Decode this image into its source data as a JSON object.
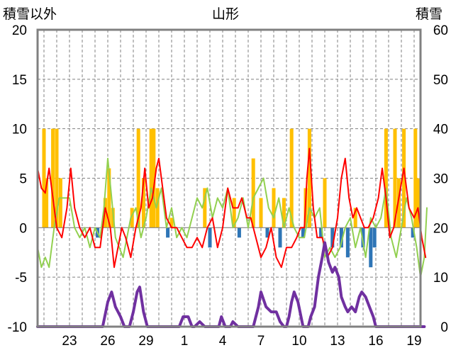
{
  "chart_data": {
    "type": "line",
    "title": "山形",
    "left_axis_label": "積雪以外",
    "right_axis_label": "積雪",
    "ylim_left": [
      -10,
      20
    ],
    "ylim_right": [
      0,
      60
    ],
    "yticks_left": [
      "20",
      "15",
      "10",
      "5",
      "0",
      "-5",
      "-10"
    ],
    "yticks_right": [
      "60",
      "50",
      "40",
      "30",
      "20",
      "10",
      "0"
    ],
    "x_range": [
      20.5,
      50.5
    ],
    "x_tick_labels": [
      "23",
      "26",
      "29",
      "1",
      "4",
      "7",
      "10",
      "13",
      "16",
      "19"
    ],
    "x_tick_positions": [
      23,
      26,
      29,
      32,
      35,
      38,
      41,
      44,
      47,
      50
    ],
    "grid": true,
    "colors": {
      "temp_anomaly": "#ff0000",
      "sunshine_anomaly": "#92d050",
      "precip_pos": "#ffc000",
      "precip_neg": "#2e75b6",
      "snow_depth": "#7030a0",
      "axis": "#808080",
      "grid": "#808080"
    },
    "series": [
      {
        "key": "temp_anomaly",
        "axis": "left",
        "points": [
          [
            20.5,
            6
          ],
          [
            20.8,
            4
          ],
          [
            21.1,
            3.5
          ],
          [
            21.4,
            6
          ],
          [
            21.7,
            3
          ],
          [
            22,
            0
          ],
          [
            22.4,
            -1
          ],
          [
            22.8,
            2
          ],
          [
            23.1,
            6
          ],
          [
            23.4,
            2
          ],
          [
            23.8,
            0
          ],
          [
            24.2,
            -1
          ],
          [
            24.6,
            0
          ],
          [
            25,
            -2
          ],
          [
            25.4,
            -2
          ],
          [
            25.8,
            2
          ],
          [
            26.2,
            0
          ],
          [
            26.5,
            -4
          ],
          [
            26.8,
            -2
          ],
          [
            27.1,
            0
          ],
          [
            27.4,
            -1
          ],
          [
            27.8,
            -3
          ],
          [
            28.2,
            0
          ],
          [
            28.6,
            2
          ],
          [
            28.9,
            6
          ],
          [
            29.2,
            2
          ],
          [
            29.5,
            3
          ],
          [
            29.8,
            6
          ],
          [
            30,
            7
          ],
          [
            30.3,
            4
          ],
          [
            30.6,
            1
          ],
          [
            31,
            0
          ],
          [
            31.4,
            0
          ],
          [
            31.8,
            -1
          ],
          [
            32.2,
            -2
          ],
          [
            32.6,
            -2
          ],
          [
            33,
            -1
          ],
          [
            33.4,
            -2
          ],
          [
            33.8,
            0
          ],
          [
            34.2,
            1
          ],
          [
            34.6,
            -2
          ],
          [
            35,
            0
          ],
          [
            35.4,
            4
          ],
          [
            35.8,
            2
          ],
          [
            36.2,
            2
          ],
          [
            36.5,
            3
          ],
          [
            36.9,
            1
          ],
          [
            37.2,
            1
          ],
          [
            37.6,
            -1
          ],
          [
            38,
            -3
          ],
          [
            38.4,
            -2
          ],
          [
            38.8,
            0
          ],
          [
            39.2,
            -3
          ],
          [
            39.6,
            -4
          ],
          [
            40,
            -2
          ],
          [
            40.4,
            -2
          ],
          [
            40.8,
            -1
          ],
          [
            41.1,
            0
          ],
          [
            41.4,
            0
          ],
          [
            41.6,
            5
          ],
          [
            41.8,
            8
          ],
          [
            42.1,
            2
          ],
          [
            42.4,
            -1
          ],
          [
            42.8,
            -1
          ],
          [
            43.2,
            -3
          ],
          [
            43.6,
            -2
          ],
          [
            44,
            1
          ],
          [
            44.3,
            5
          ],
          [
            44.6,
            7
          ],
          [
            44.9,
            3
          ],
          [
            45.2,
            1
          ],
          [
            45.5,
            2
          ],
          [
            45.8,
            1
          ],
          [
            46.1,
            0
          ],
          [
            46.4,
            0
          ],
          [
            46.8,
            1
          ],
          [
            47.2,
            3
          ],
          [
            47.5,
            6
          ],
          [
            47.8,
            3
          ],
          [
            48.1,
            -1
          ],
          [
            48.4,
            0
          ],
          [
            48.8,
            3
          ],
          [
            49.2,
            6
          ],
          [
            49.6,
            2
          ],
          [
            50,
            1
          ],
          [
            50.3,
            2
          ],
          [
            50.6,
            -1
          ],
          [
            50.9,
            -3
          ]
        ]
      },
      {
        "key": "sunshine_anomaly",
        "axis": "left",
        "points": [
          [
            20.5,
            -2
          ],
          [
            20.8,
            -4
          ],
          [
            21.1,
            -3
          ],
          [
            21.4,
            -4
          ],
          [
            21.8,
            0
          ],
          [
            22.2,
            3
          ],
          [
            22.6,
            3
          ],
          [
            23,
            3
          ],
          [
            23.4,
            0
          ],
          [
            23.8,
            -1
          ],
          [
            24.2,
            0
          ],
          [
            24.6,
            -2
          ],
          [
            25,
            0
          ],
          [
            25.4,
            -1
          ],
          [
            25.7,
            2
          ],
          [
            26,
            7
          ],
          [
            26.3,
            3
          ],
          [
            26.6,
            -1
          ],
          [
            26.9,
            -2
          ],
          [
            27.2,
            -3
          ],
          [
            27.5,
            -1
          ],
          [
            27.8,
            1
          ],
          [
            28.2,
            2
          ],
          [
            28.6,
            -1
          ],
          [
            29,
            1
          ],
          [
            29.4,
            4
          ],
          [
            29.8,
            2
          ],
          [
            30.2,
            4
          ],
          [
            30.6,
            0
          ],
          [
            31,
            2
          ],
          [
            31.4,
            -1
          ],
          [
            31.8,
            0
          ],
          [
            32.2,
            -1
          ],
          [
            32.6,
            1
          ],
          [
            33,
            3
          ],
          [
            33.4,
            2
          ],
          [
            33.8,
            4
          ],
          [
            34.2,
            1
          ],
          [
            34.6,
            3
          ],
          [
            35,
            2
          ],
          [
            35.4,
            4
          ],
          [
            35.8,
            0
          ],
          [
            36.2,
            1
          ],
          [
            36.6,
            3
          ],
          [
            37,
            0
          ],
          [
            37.4,
            3
          ],
          [
            37.8,
            4
          ],
          [
            38.2,
            5
          ],
          [
            38.6,
            2
          ],
          [
            39,
            1
          ],
          [
            39.4,
            3
          ],
          [
            39.8,
            0
          ],
          [
            40.2,
            2
          ],
          [
            40.6,
            0
          ],
          [
            41,
            -1
          ],
          [
            41.4,
            -1
          ],
          [
            41.8,
            2
          ],
          [
            42.2,
            1
          ],
          [
            42.6,
            2
          ],
          [
            43,
            -3
          ],
          [
            43.4,
            -2
          ],
          [
            43.8,
            -3
          ],
          [
            44.2,
            -2
          ],
          [
            44.6,
            0
          ],
          [
            45,
            1
          ],
          [
            45.4,
            -2
          ],
          [
            45.8,
            0
          ],
          [
            46.2,
            -3
          ],
          [
            46.6,
            1
          ],
          [
            47,
            0
          ],
          [
            47.4,
            1
          ],
          [
            47.8,
            4
          ],
          [
            48.2,
            -1
          ],
          [
            48.6,
            -3
          ],
          [
            49,
            0
          ],
          [
            49.4,
            3
          ],
          [
            49.8,
            1
          ],
          [
            50.2,
            -2
          ],
          [
            50.5,
            -5
          ],
          [
            50.8,
            -3
          ],
          [
            51,
            2
          ]
        ]
      },
      {
        "key": "snow_depth",
        "axis": "right",
        "points": [
          [
            20.5,
            0
          ],
          [
            25.6,
            0
          ],
          [
            26,
            5
          ],
          [
            26.3,
            7
          ],
          [
            26.6,
            4
          ],
          [
            27,
            2
          ],
          [
            27.3,
            0
          ],
          [
            27.7,
            0
          ],
          [
            28,
            3
          ],
          [
            28.3,
            7
          ],
          [
            28.5,
            8
          ],
          [
            28.8,
            3
          ],
          [
            29.1,
            0
          ],
          [
            31.6,
            0
          ],
          [
            31.9,
            2
          ],
          [
            32.3,
            2
          ],
          [
            32.6,
            0
          ],
          [
            32.8,
            0
          ],
          [
            33.2,
            1
          ],
          [
            33.6,
            0
          ],
          [
            34.7,
            0
          ],
          [
            34.9,
            2
          ],
          [
            35.2,
            0
          ],
          [
            35.6,
            0
          ],
          [
            35.8,
            1
          ],
          [
            36.2,
            0
          ],
          [
            37.4,
            0
          ],
          [
            37.8,
            4
          ],
          [
            38,
            7
          ],
          [
            38.4,
            4
          ],
          [
            38.8,
            3
          ],
          [
            39.2,
            3
          ],
          [
            39.5,
            1
          ],
          [
            39.8,
            0
          ],
          [
            40,
            0
          ],
          [
            40.2,
            2
          ],
          [
            40.4,
            5
          ],
          [
            40.6,
            7
          ],
          [
            40.9,
            5
          ],
          [
            41.3,
            0
          ],
          [
            41.7,
            0
          ],
          [
            41.9,
            2
          ],
          [
            42.2,
            4
          ],
          [
            42.5,
            10
          ],
          [
            42.8,
            14
          ],
          [
            43,
            17
          ],
          [
            43.3,
            13
          ],
          [
            43.6,
            11
          ],
          [
            43.8,
            12
          ],
          [
            44.1,
            10
          ],
          [
            44.3,
            6
          ],
          [
            44.6,
            4
          ],
          [
            44.8,
            3
          ],
          [
            45.1,
            4
          ],
          [
            45.4,
            3
          ],
          [
            45.7,
            6
          ],
          [
            45.9,
            7
          ],
          [
            46.2,
            6
          ],
          [
            46.5,
            4
          ],
          [
            46.8,
            2
          ],
          [
            47,
            0
          ],
          [
            50.8,
            0
          ]
        ]
      },
      {
        "key": "precipitation",
        "axis": "left",
        "bars": [
          [
            21,
            10
          ],
          [
            21.2,
            5
          ],
          [
            21.7,
            10
          ],
          [
            22,
            10
          ],
          [
            22.3,
            5
          ],
          [
            25.2,
            -1
          ],
          [
            25.8,
            3
          ],
          [
            26.1,
            6
          ],
          [
            26.4,
            2
          ],
          [
            27.9,
            2
          ],
          [
            28.4,
            10
          ],
          [
            28.8,
            5
          ],
          [
            29.4,
            10
          ],
          [
            29.6,
            10
          ],
          [
            29.9,
            4
          ],
          [
            30.7,
            -1
          ],
          [
            31,
            1
          ],
          [
            33.6,
            4
          ],
          [
            34,
            -2
          ],
          [
            35.9,
            3
          ],
          [
            36.3,
            -1
          ],
          [
            37.4,
            7
          ],
          [
            38,
            3
          ],
          [
            38.5,
            -1
          ],
          [
            39,
            4
          ],
          [
            39.5,
            -2
          ],
          [
            39.8,
            3
          ],
          [
            40.4,
            10
          ],
          [
            41.3,
            -1
          ],
          [
            41.5,
            4
          ],
          [
            41.8,
            10
          ],
          [
            42.7,
            -1
          ],
          [
            43,
            5
          ],
          [
            43.6,
            -2
          ],
          [
            44.3,
            -2
          ],
          [
            44.8,
            -3
          ],
          [
            45.4,
            2
          ],
          [
            46,
            -2
          ],
          [
            46.6,
            -4
          ],
          [
            46.9,
            -2
          ],
          [
            47.8,
            10
          ],
          [
            48.5,
            10
          ],
          [
            48.8,
            5
          ],
          [
            49.2,
            10
          ],
          [
            49.9,
            -1
          ],
          [
            50.1,
            10
          ],
          [
            50.3,
            5
          ]
        ]
      }
    ]
  }
}
